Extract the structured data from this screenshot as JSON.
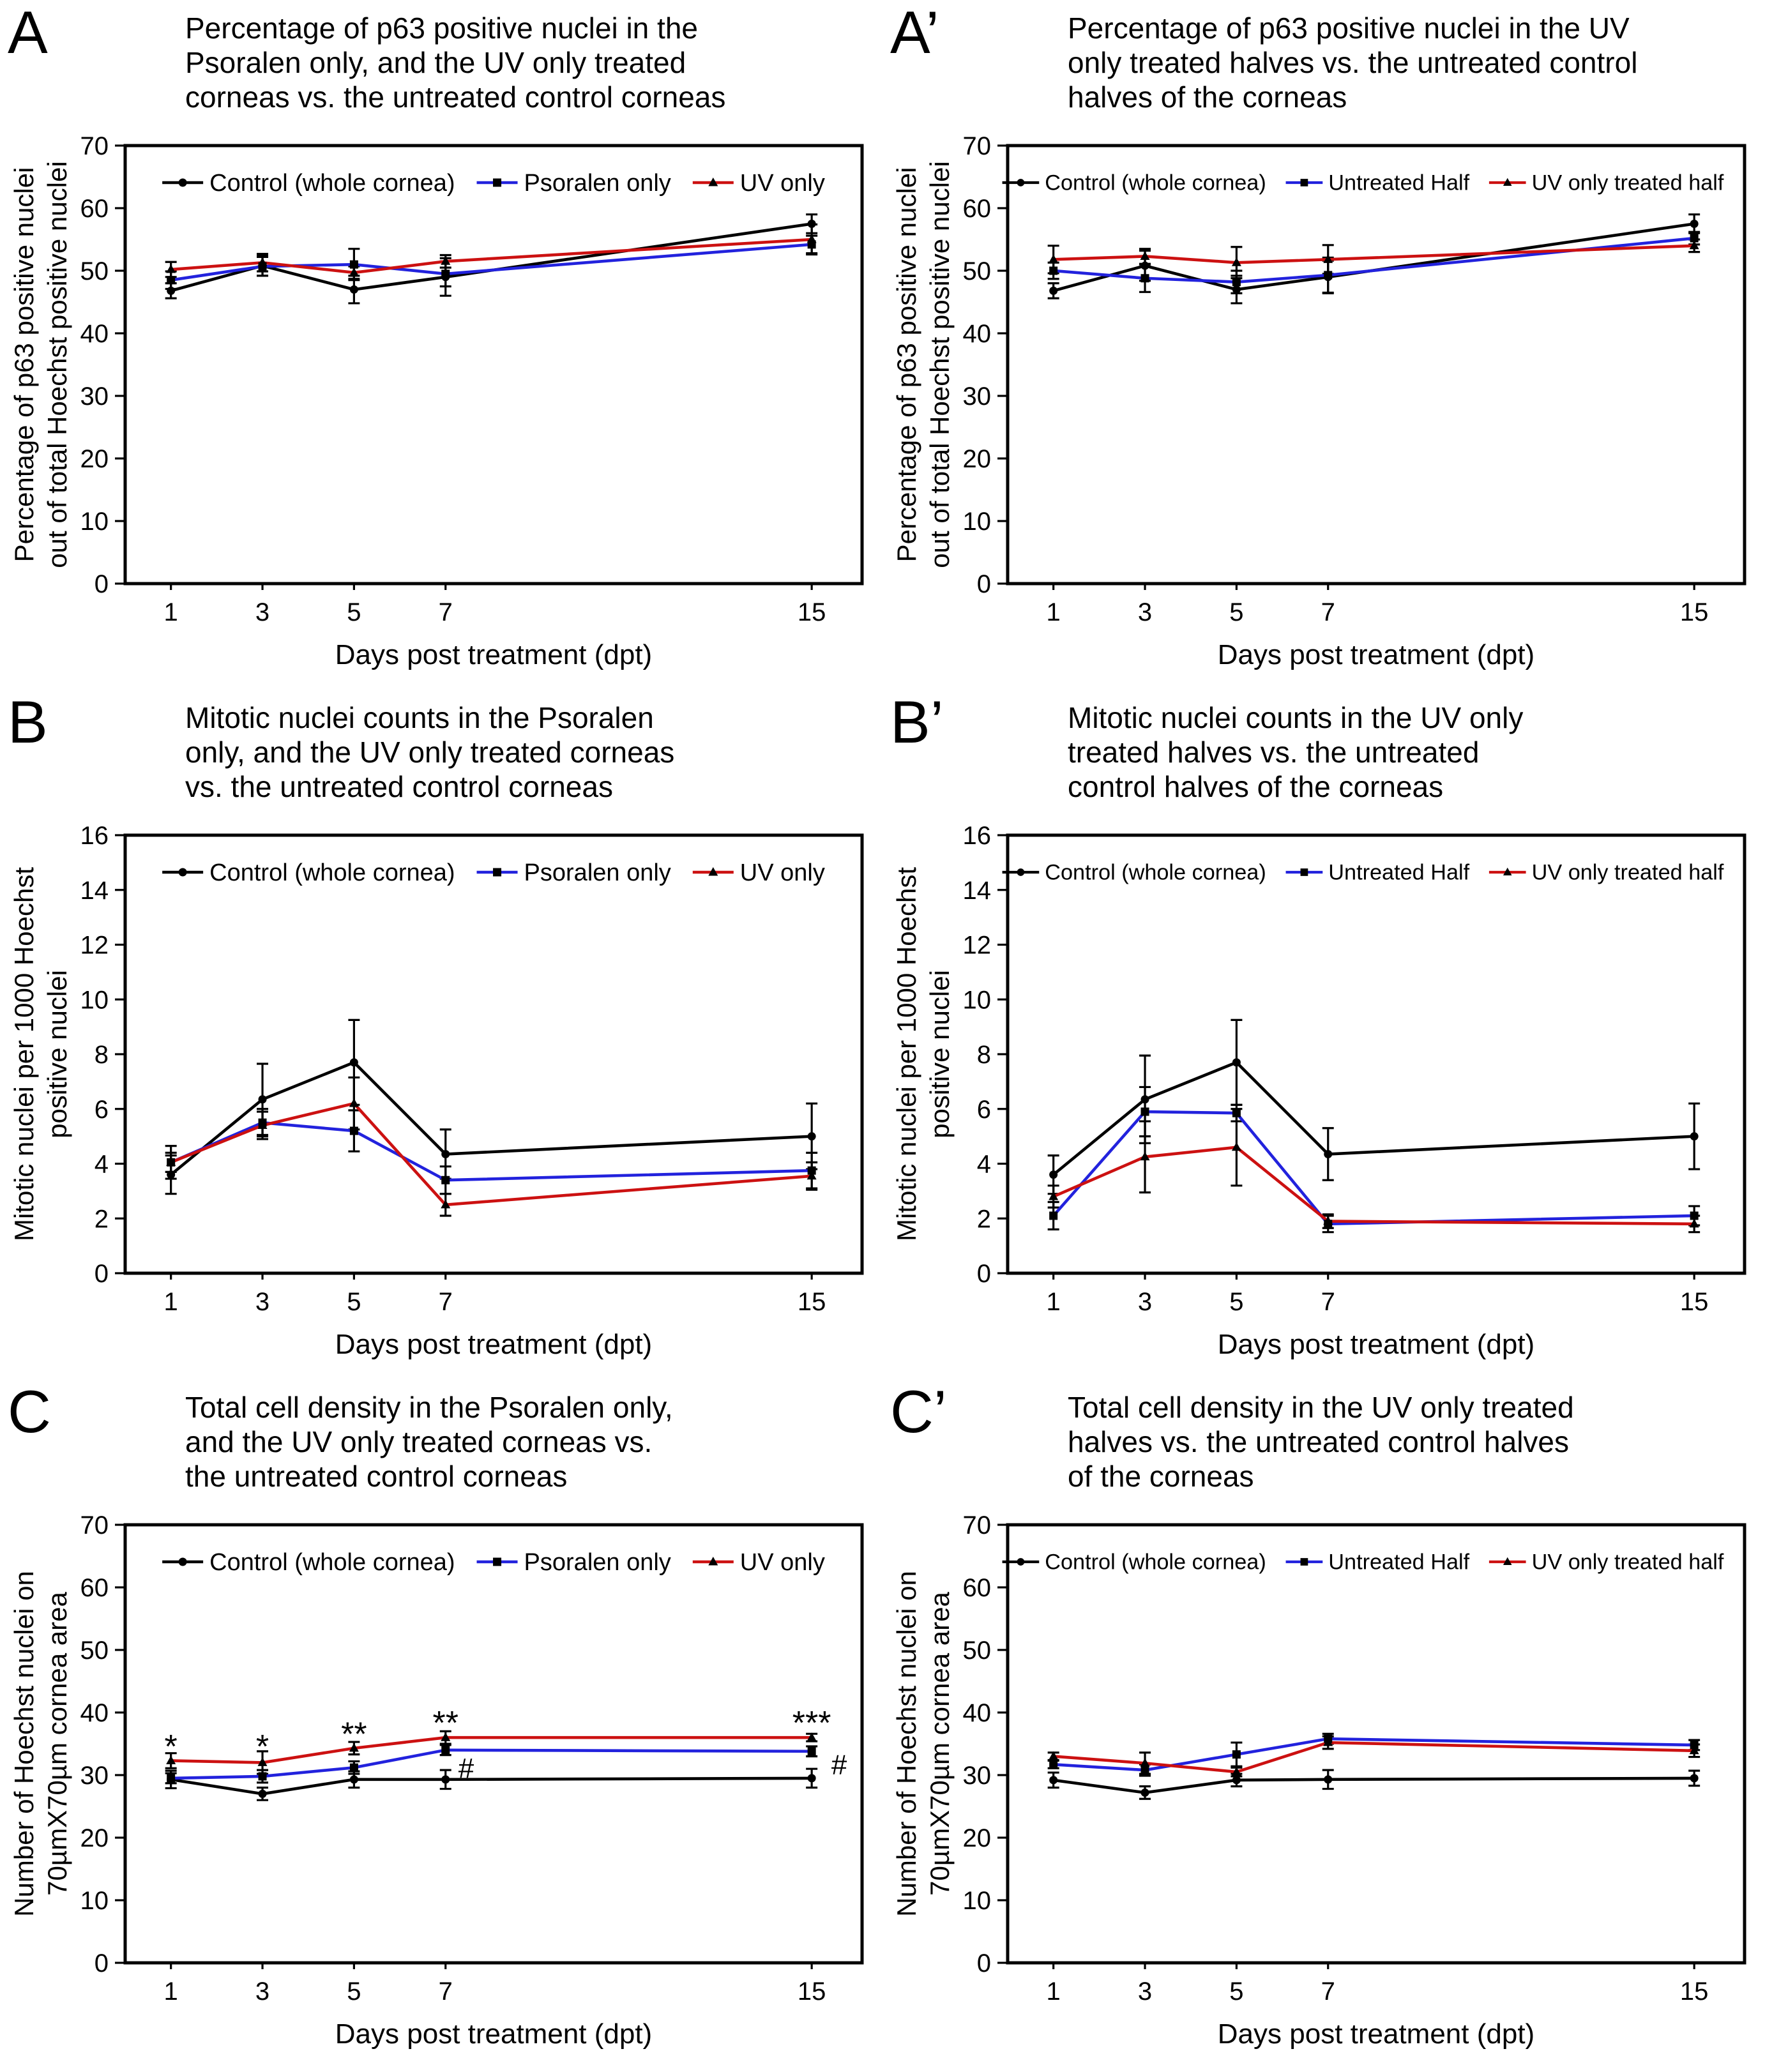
{
  "xlabel_shared": "Days post treatment (dpt)",
  "chart_data": [
    {
      "type": "line",
      "panel_label": "A",
      "title": "Percentage of p63 positive nuclei in the Psoralen only, and the UV only treated corneas vs. the untreated control corneas",
      "title_lines": [
        "Percentage of p63 positive nuclei in the",
        "Psoralen only, and the UV only treated",
        "corneas vs. the untreated control corneas"
      ],
      "xlabel": "Days post treatment (dpt)",
      "ylabel": "Percentage of p63 positive nuclei out of total Hoechst positive nuclei",
      "ylabel_lines": [
        "Percentage of p63 positive nuclei",
        "out of total Hoechst positive nuclei"
      ],
      "x": [
        1,
        3,
        5,
        7,
        15
      ],
      "x_tick_labels": [
        "1",
        "3",
        "5",
        "7",
        "15"
      ],
      "xlim": [
        0,
        16.1
      ],
      "ylim": [
        0,
        70
      ],
      "yticks": [
        0,
        10,
        20,
        30,
        40,
        50,
        60,
        70
      ],
      "grid": false,
      "legend_position": "top-center-inside",
      "series": [
        {
          "name": "Control (whole cornea)",
          "color": "#000000",
          "marker": "circle",
          "marker_color": "#000000",
          "values": [
            46.8,
            50.8,
            47.0,
            49.0,
            57.5
          ],
          "errors": [
            1.2,
            1.6,
            2.2,
            3.0,
            1.5
          ]
        },
        {
          "name": "Psoralen only",
          "color": "#2222dd",
          "marker": "square",
          "marker_color": "#000000",
          "values": [
            48.5,
            50.7,
            51.0,
            49.5,
            54.2
          ],
          "errors": [
            1.4,
            1.5,
            2.5,
            2.0,
            1.4
          ]
        },
        {
          "name": "UV only",
          "color": "#cc1111",
          "marker": "triangle",
          "marker_color": "#000000",
          "values": [
            50.2,
            51.3,
            49.7,
            51.5,
            55.0
          ],
          "errors": [
            1.2,
            1.4,
            1.0,
            1.0,
            2.4
          ]
        }
      ],
      "annotations": []
    },
    {
      "type": "line",
      "panel_label": "A’",
      "title": "Percentage of p63 positive nuclei in the UV only treated halves vs. the untreated control halves of the corneas",
      "title_lines": [
        "Percentage of p63 positive nuclei in the UV",
        "only treated halves vs. the untreated control",
        "halves of the corneas"
      ],
      "xlabel": "Days post treatment (dpt)",
      "ylabel": "Percentage of p63 positive nuclei out of total Hoechst positive nuclei",
      "ylabel_lines": [
        "Percentage of p63 positive nuclei",
        "out of total Hoechst positive nuclei"
      ],
      "x": [
        1,
        3,
        5,
        7,
        15
      ],
      "x_tick_labels": [
        "1",
        "3",
        "5",
        "7",
        "15"
      ],
      "xlim": [
        0,
        16.1
      ],
      "ylim": [
        0,
        70
      ],
      "yticks": [
        0,
        10,
        20,
        30,
        40,
        50,
        60,
        70
      ],
      "grid": false,
      "legend_position": "top-center-inside",
      "series": [
        {
          "name": "Control (whole cornea)",
          "color": "#000000",
          "marker": "circle",
          "marker_color": "#000000",
          "values": [
            46.8,
            50.8,
            47.0,
            49.0,
            57.5
          ],
          "errors": [
            1.2,
            2.4,
            2.2,
            2.6,
            1.5
          ]
        },
        {
          "name": "Untreated Half",
          "color": "#2222dd",
          "marker": "square",
          "marker_color": "#000000",
          "values": [
            50.0,
            48.8,
            48.2,
            49.3,
            55.2
          ],
          "errors": [
            1.3,
            2.2,
            1.8,
            2.8,
            1.0
          ]
        },
        {
          "name": "UV only treated half",
          "color": "#cc1111",
          "marker": "triangle",
          "marker_color": "#000000",
          "values": [
            51.8,
            52.3,
            51.3,
            51.8,
            54.0
          ],
          "errors": [
            2.2,
            1.2,
            2.5,
            2.3,
            1.0
          ]
        }
      ],
      "annotations": []
    },
    {
      "type": "line",
      "panel_label": "B",
      "title": "Mitotic nuclei counts in the Psoralen only, and the UV only treated corneas vs. the untreated control corneas",
      "title_lines": [
        "Mitotic nuclei counts in the Psoralen",
        "only, and the UV only treated corneas",
        "vs. the untreated control corneas"
      ],
      "xlabel": "Days post treatment (dpt)",
      "ylabel": "Mitotic nuclei per 1000 Hoechst positive nuclei",
      "ylabel_lines": [
        "Mitotic nuclei  per 1000 Hoechst",
        "positive nuclei"
      ],
      "x": [
        1,
        3,
        5,
        7,
        15
      ],
      "x_tick_labels": [
        "1",
        "3",
        "5",
        "7",
        "15"
      ],
      "xlim": [
        0,
        16.1
      ],
      "ylim": [
        0,
        16
      ],
      "yticks": [
        0,
        2,
        4,
        6,
        8,
        10,
        12,
        14,
        16
      ],
      "grid": false,
      "legend_position": "top-center-inside",
      "series": [
        {
          "name": "Control (whole cornea)",
          "color": "#000000",
          "marker": "circle",
          "marker_color": "#000000",
          "values": [
            3.6,
            6.35,
            7.7,
            4.35,
            5.0
          ],
          "errors": [
            0.7,
            1.3,
            1.55,
            0.9,
            1.2
          ]
        },
        {
          "name": "Psoralen only",
          "color": "#2222dd",
          "marker": "square",
          "marker_color": "#000000",
          "values": [
            4.05,
            5.5,
            5.2,
            3.4,
            3.75
          ],
          "errors": [
            0.6,
            0.5,
            0.75,
            0.5,
            0.65
          ]
        },
        {
          "name": "UV only",
          "color": "#cc1111",
          "marker": "triangle",
          "marker_color": "#000000",
          "values": [
            4.05,
            5.4,
            6.2,
            2.5,
            3.55
          ],
          "errors": [
            0.35,
            0.5,
            0.95,
            0.4,
            0.5
          ]
        }
      ],
      "annotations": []
    },
    {
      "type": "line",
      "panel_label": "B’",
      "title": "Mitotic nuclei counts in the UV only treated halves vs. the untreated control halves of the corneas",
      "title_lines": [
        "Mitotic nuclei counts in the UV only",
        "treated halves vs. the untreated",
        "control halves of the corneas"
      ],
      "xlabel": "Days post treatment (dpt)",
      "ylabel": "Mitotic nuclei per 1000 Hoechst positive nuclei",
      "ylabel_lines": [
        "Mitotic nuclei  per 1000 Hoechst",
        "positive nuclei"
      ],
      "x": [
        1,
        3,
        5,
        7,
        15
      ],
      "x_tick_labels": [
        "1",
        "3",
        "5",
        "7",
        "15"
      ],
      "xlim": [
        0,
        16.1
      ],
      "ylim": [
        0,
        16
      ],
      "yticks": [
        0,
        2,
        4,
        6,
        8,
        10,
        12,
        14,
        16
      ],
      "grid": false,
      "legend_position": "top-center-inside",
      "series": [
        {
          "name": "Control (whole cornea)",
          "color": "#000000",
          "marker": "circle",
          "marker_color": "#000000",
          "values": [
            3.6,
            6.35,
            7.7,
            4.35,
            5.0
          ],
          "errors": [
            0.7,
            1.6,
            1.55,
            0.95,
            1.2
          ]
        },
        {
          "name": "Untreated Half",
          "color": "#2222dd",
          "marker": "square",
          "marker_color": "#000000",
          "values": [
            2.1,
            5.9,
            5.85,
            1.8,
            2.1
          ],
          "errors": [
            0.5,
            0.9,
            0.3,
            0.3,
            0.35
          ]
        },
        {
          "name": "UV only treated half",
          "color": "#cc1111",
          "marker": "triangle",
          "marker_color": "#000000",
          "values": [
            2.8,
            4.25,
            4.6,
            1.9,
            1.8
          ],
          "errors": [
            0.4,
            1.3,
            1.4,
            0.25,
            0.3
          ]
        }
      ],
      "annotations": []
    },
    {
      "type": "line",
      "panel_label": "C",
      "title": "Total cell density in the Psoralen only, and the UV only treated corneas vs. the untreated control corneas",
      "title_lines": [
        "Total cell density in the Psoralen only,",
        "and the UV only treated corneas vs.",
        "the untreated control corneas"
      ],
      "xlabel": "Days post treatment (dpt)",
      "ylabel": "Number of Hoechst nuclei on 70µmX70µm cornea area",
      "ylabel_lines": [
        "Number of Hoechst nuclei on",
        "70µmX70µm cornea area"
      ],
      "x": [
        1,
        3,
        5,
        7,
        15
      ],
      "x_tick_labels": [
        "1",
        "3",
        "5",
        "7",
        "15"
      ],
      "xlim": [
        0,
        16.1
      ],
      "ylim": [
        0,
        70
      ],
      "yticks": [
        0,
        10,
        20,
        30,
        40,
        50,
        60,
        70
      ],
      "grid": false,
      "legend_position": "top-center-inside",
      "series": [
        {
          "name": "Control (whole cornea)",
          "color": "#000000",
          "marker": "circle",
          "marker_color": "#000000",
          "values": [
            29.3,
            27.0,
            29.3,
            29.3,
            29.5
          ],
          "errors": [
            1.4,
            1.0,
            1.3,
            1.5,
            1.5
          ]
        },
        {
          "name": "Psoralen only",
          "color": "#2222dd",
          "marker": "square",
          "marker_color": "#000000",
          "values": [
            29.5,
            29.8,
            31.2,
            34.0,
            33.8
          ],
          "errors": [
            0.8,
            1.0,
            1.0,
            0.8,
            0.8
          ]
        },
        {
          "name": "UV only",
          "color": "#cc1111",
          "marker": "triangle",
          "marker_color": "#000000",
          "values": [
            32.3,
            32.0,
            34.3,
            36.0,
            36.0
          ],
          "errors": [
            1.2,
            1.8,
            1.0,
            1.0,
            0.6
          ]
        }
      ],
      "annotations": [
        {
          "x": 1,
          "y": 35.8,
          "text": "*"
        },
        {
          "x": 3,
          "y": 35.8,
          "text": "*"
        },
        {
          "x": 5,
          "y": 37.8,
          "text": "**"
        },
        {
          "x": 7,
          "y": 39.6,
          "text": "**"
        },
        {
          "x": 15,
          "y": 39.6,
          "text": "***"
        },
        {
          "x": 7.45,
          "y": 31.2,
          "text": "#"
        },
        {
          "x": 15.6,
          "y": 31.8,
          "text": "#"
        }
      ]
    },
    {
      "type": "line",
      "panel_label": "C’",
      "title": "Total cell density in the UV only treated halves vs. the untreated control halves of the corneas",
      "title_lines": [
        "Total cell density in the UV only treated",
        "halves vs. the untreated control halves",
        "of the corneas"
      ],
      "xlabel": "Days post treatment (dpt)",
      "ylabel": "Number of Hoechst nuclei on 70µmX70µm cornea area",
      "ylabel_lines": [
        "Number of Hoechst nuclei on",
        "70µmX70µm cornea area"
      ],
      "x": [
        1,
        3,
        5,
        7,
        15
      ],
      "x_tick_labels": [
        "1",
        "3",
        "5",
        "7",
        "15"
      ],
      "xlim": [
        0,
        16.1
      ],
      "ylim": [
        0,
        70
      ],
      "yticks": [
        0,
        10,
        20,
        30,
        40,
        50,
        60,
        70
      ],
      "grid": false,
      "legend_position": "top-center-inside",
      "series": [
        {
          "name": "Control (whole cornea)",
          "color": "#000000",
          "marker": "circle",
          "marker_color": "#000000",
          "values": [
            29.2,
            27.2,
            29.2,
            29.3,
            29.5
          ],
          "errors": [
            1.2,
            1.0,
            1.0,
            1.5,
            1.2
          ]
        },
        {
          "name": "Untreated Half",
          "color": "#2222dd",
          "marker": "square",
          "marker_color": "#000000",
          "values": [
            31.7,
            30.8,
            33.3,
            35.8,
            34.8
          ],
          "errors": [
            0.6,
            0.9,
            1.9,
            0.8,
            0.8
          ]
        },
        {
          "name": "UV only treated half",
          "color": "#cc1111",
          "marker": "triangle",
          "marker_color": "#000000",
          "values": [
            33.0,
            31.9,
            30.5,
            35.2,
            33.9
          ],
          "errors": [
            0.6,
            1.7,
            0.7,
            1.0,
            1.0
          ]
        }
      ],
      "annotations": []
    }
  ]
}
